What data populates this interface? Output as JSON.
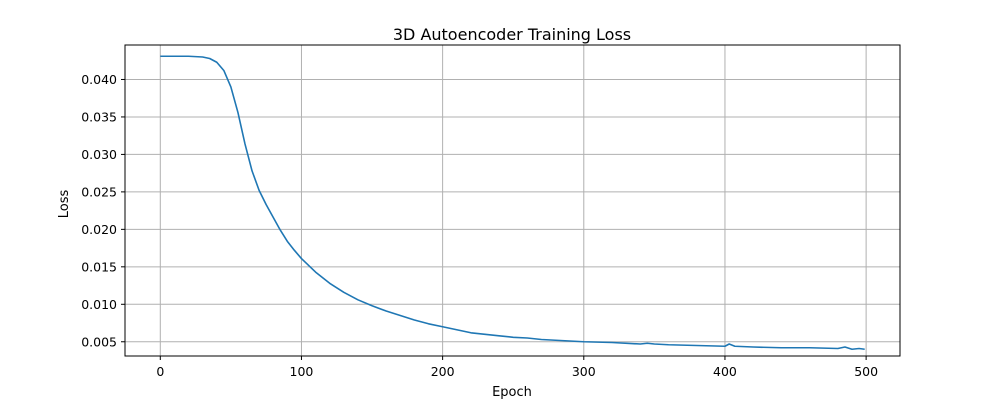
{
  "chart_data": {
    "type": "line",
    "title": "3D Autoencoder Training Loss",
    "xlabel": "Epoch",
    "ylabel": "Loss",
    "xlim": [
      -25,
      524
    ],
    "ylim": [
      0.0031,
      0.0446
    ],
    "xticks": [
      0,
      100,
      200,
      300,
      400,
      500
    ],
    "yticks": [
      0.005,
      0.01,
      0.015,
      0.02,
      0.025,
      0.03,
      0.035,
      0.04
    ],
    "xtick_labels": [
      "0",
      "100",
      "200",
      "300",
      "400",
      "500"
    ],
    "ytick_labels": [
      "0.005",
      "0.010",
      "0.015",
      "0.020",
      "0.025",
      "0.030",
      "0.035",
      "0.040"
    ],
    "grid": true,
    "line_color": "#1f77b4",
    "series": [
      {
        "x": [
          0,
          10,
          20,
          30,
          35,
          40,
          45,
          50,
          55,
          60,
          65,
          70,
          75,
          80,
          85,
          90,
          95,
          100,
          110,
          120,
          130,
          140,
          150,
          160,
          170,
          180,
          190,
          200,
          210,
          220,
          230,
          240,
          250,
          260,
          270,
          280,
          290,
          300,
          320,
          340,
          345,
          350,
          360,
          380,
          400,
          403,
          407,
          420,
          440,
          460,
          480,
          485,
          490,
          495,
          499
        ],
        "values": [
          0.0431,
          0.0431,
          0.0431,
          0.043,
          0.0428,
          0.0423,
          0.0412,
          0.039,
          0.0356,
          0.0314,
          0.0278,
          0.0252,
          0.0233,
          0.0216,
          0.0199,
          0.0184,
          0.0172,
          0.0161,
          0.0143,
          0.0128,
          0.0116,
          0.0106,
          0.0098,
          0.0091,
          0.0085,
          0.0079,
          0.0074,
          0.007,
          0.0066,
          0.0062,
          0.006,
          0.0058,
          0.0056,
          0.0055,
          0.0053,
          0.0052,
          0.0051,
          0.005,
          0.0049,
          0.0047,
          0.0048,
          0.0047,
          0.0046,
          0.0045,
          0.0044,
          0.0047,
          0.0044,
          0.0043,
          0.0042,
          0.0042,
          0.0041,
          0.0043,
          0.004,
          0.0041,
          0.004
        ]
      }
    ]
  }
}
